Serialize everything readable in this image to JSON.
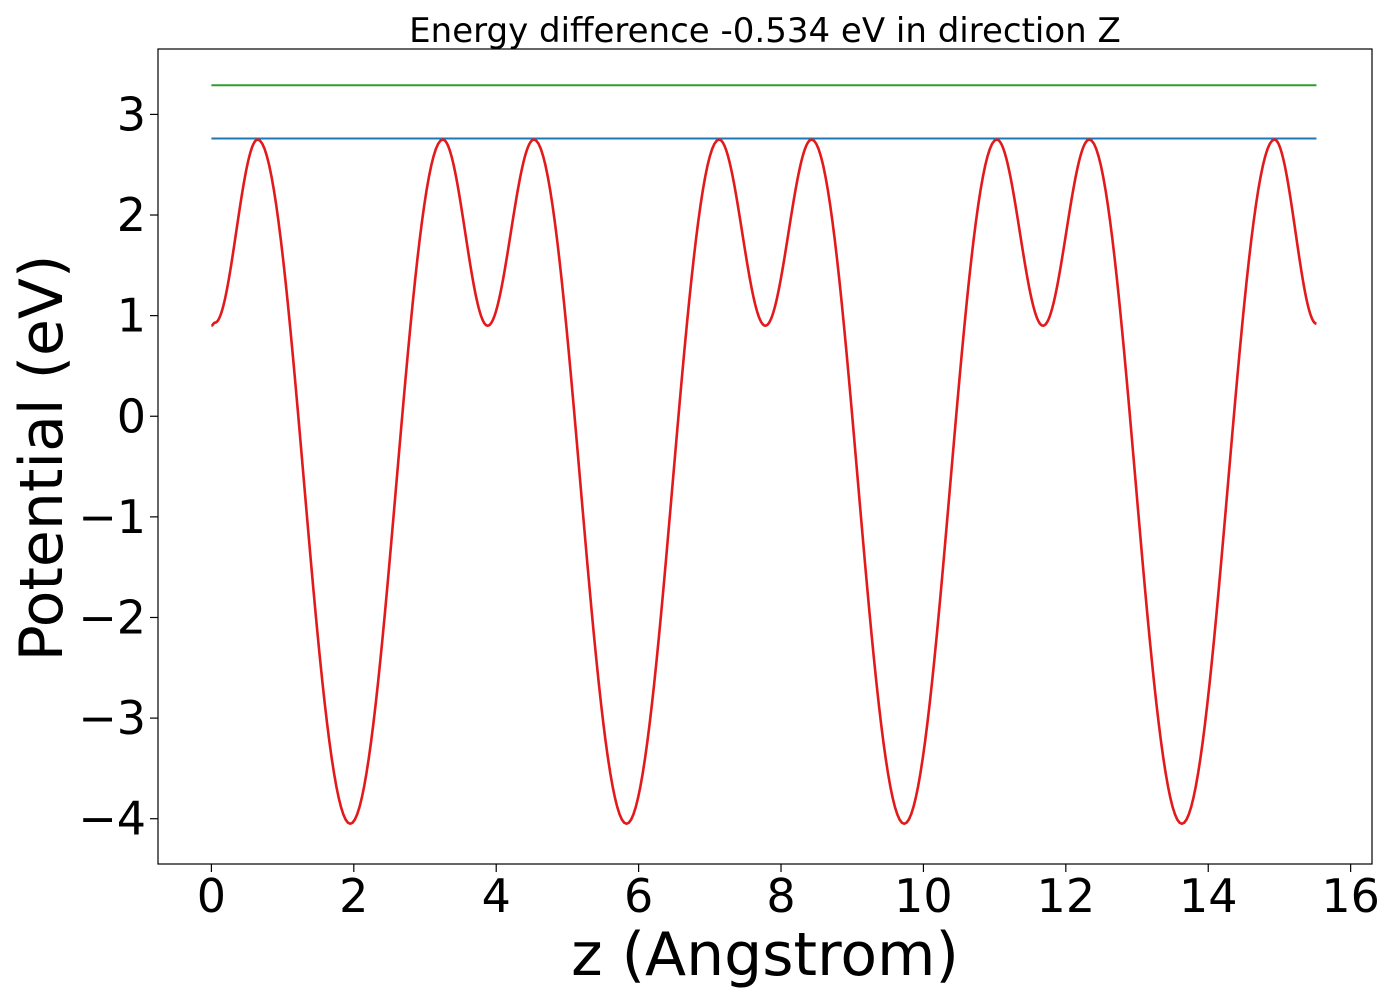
{
  "chart_data": {
    "type": "line",
    "title": "Energy difference -0.534 eV in direction Z",
    "xlabel": "z (Angstrom)",
    "ylabel": "Potential (eV)",
    "xlim": [
      -0.75,
      16.3
    ],
    "ylim": [
      -4.45,
      3.65
    ],
    "xticks": [
      0,
      2,
      4,
      6,
      8,
      10,
      12,
      14,
      16
    ],
    "xtick_labels": [
      "0",
      "2",
      "4",
      "6",
      "8",
      "10",
      "12",
      "14",
      "16"
    ],
    "yticks": [
      -4,
      -3,
      -2,
      -1,
      0,
      1,
      2,
      3
    ],
    "ytick_labels": [
      "−4",
      "−3",
      "−2",
      "−1",
      "0",
      "1",
      "2",
      "3"
    ],
    "grid": false,
    "series": [
      {
        "color": "#2ca02c",
        "x": [
          0,
          15.52
        ],
        "y": [
          3.29,
          3.29
        ]
      },
      {
        "color": "#1f77b4",
        "x": [
          0,
          15.52
        ],
        "y": [
          2.76,
          2.76
        ]
      },
      {
        "color": "#e31a1c",
        "style": "smooth",
        "x": [
          0,
          0.05,
          0.65,
          1.95,
          3.25,
          3.88,
          4.53,
          5.83,
          7.13,
          7.78,
          8.43,
          9.73,
          11.03,
          11.68,
          12.33,
          13.63,
          14.93,
          15.52
        ],
        "y": [
          0.9,
          0.93,
          2.75,
          -4.05,
          2.75,
          0.9,
          2.75,
          -4.05,
          2.75,
          0.9,
          2.75,
          -4.05,
          2.75,
          0.9,
          2.75,
          -4.05,
          2.75,
          0.92
        ]
      }
    ]
  }
}
